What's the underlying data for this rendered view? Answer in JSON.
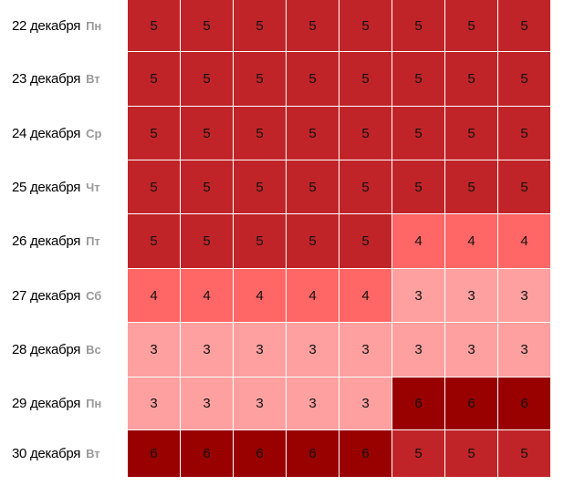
{
  "level_colors": {
    "3": "#ffa0a0",
    "4": "#ff6666",
    "5": "#c02428",
    "6": "#990000"
  },
  "rows": [
    {
      "date": "22 декабря",
      "dow": "Пн",
      "values": [
        5,
        5,
        5,
        5,
        5,
        5,
        5,
        5
      ]
    },
    {
      "date": "23 декабря",
      "dow": "Вт",
      "values": [
        5,
        5,
        5,
        5,
        5,
        5,
        5,
        5
      ]
    },
    {
      "date": "24 декабря",
      "dow": "Ср",
      "values": [
        5,
        5,
        5,
        5,
        5,
        5,
        5,
        5
      ]
    },
    {
      "date": "25 декабря",
      "dow": "Чт",
      "values": [
        5,
        5,
        5,
        5,
        5,
        5,
        5,
        5
      ]
    },
    {
      "date": "26 декабря",
      "dow": "Пт",
      "values": [
        5,
        5,
        5,
        5,
        5,
        4,
        4,
        4
      ]
    },
    {
      "date": "27 декабря",
      "dow": "Сб",
      "values": [
        4,
        4,
        4,
        4,
        4,
        3,
        3,
        3
      ]
    },
    {
      "date": "28 декабря",
      "dow": "Вс",
      "values": [
        3,
        3,
        3,
        3,
        3,
        3,
        3,
        3
      ]
    },
    {
      "date": "29 декабря",
      "dow": "Пн",
      "values": [
        3,
        3,
        3,
        3,
        3,
        6,
        6,
        6
      ]
    },
    {
      "date": "30 декабря",
      "dow": "Вт",
      "values": [
        6,
        6,
        6,
        6,
        6,
        5,
        5,
        5
      ]
    }
  ]
}
